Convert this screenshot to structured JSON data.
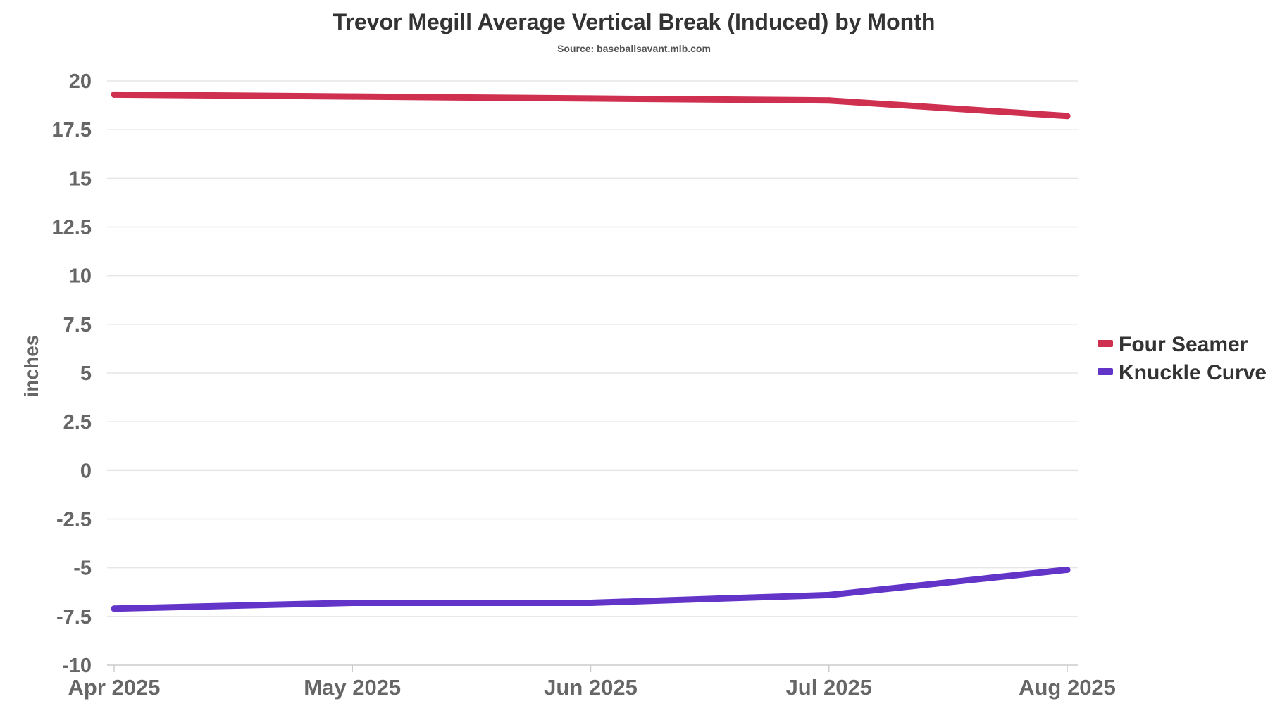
{
  "chart_data": {
    "type": "line",
    "title": "Trevor Megill Average Vertical Break (Induced) by Month",
    "subtitle": "Source: baseballsavant.mlb.com",
    "xlabel": "",
    "ylabel": "inches",
    "categories": [
      "Apr 2025",
      "May 2025",
      "Jun 2025",
      "Jul 2025",
      "Aug 2025"
    ],
    "yticks": [
      "20",
      "17.5",
      "15",
      "12.5",
      "10",
      "7.5",
      "5",
      "2.5",
      "0",
      "-2.5",
      "-5",
      "-7.5",
      "-10"
    ],
    "ylim": [
      -10,
      20
    ],
    "grid": true,
    "legend_position": "right",
    "series": [
      {
        "name": "Four Seamer",
        "color": "#d03050",
        "values": [
          19.3,
          19.2,
          19.1,
          19.0,
          18.2
        ]
      },
      {
        "name": "Knuckle Curve",
        "color": "#6234c8",
        "values": [
          -7.1,
          -6.8,
          -6.8,
          -6.4,
          -5.1
        ]
      }
    ]
  }
}
